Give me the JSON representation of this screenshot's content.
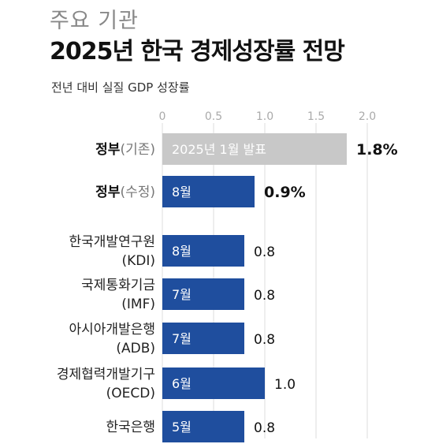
{
  "chart_data": {
    "type": "bar",
    "orientation": "horizontal",
    "kicker": "주요 기관",
    "title": "2025년 한국 경제성장률 전망",
    "subtitle": "전년 대비 실질 GDP 성장률",
    "xlim": [
      0,
      2.0
    ],
    "xticks": [
      "0",
      "0.5",
      "1.0",
      "1.5",
      "2.0"
    ],
    "grid": true,
    "rows": [
      {
        "label_strong": "정부",
        "label_light": "(기존)",
        "label_lines": [],
        "value": 1.8,
        "value_label": "1.8%",
        "bar_text": "2025년 1월 발표",
        "color": "#c8c8c8",
        "highlight": true
      },
      {
        "label_strong": "정부",
        "label_light": "(수정)",
        "label_lines": [],
        "value": 0.9,
        "value_label": "0.9%",
        "bar_text": "8월",
        "color": "#1f4e9e",
        "highlight": true
      },
      {
        "label_strong": "",
        "label_light": "",
        "label_lines": [
          "한국개발연구원",
          "(KDI)"
        ],
        "value": 0.8,
        "value_label": "0.8",
        "bar_text": "8월",
        "color": "#1f4e9e",
        "highlight": false
      },
      {
        "label_strong": "",
        "label_light": "",
        "label_lines": [
          "국제통화기금",
          "(IMF)"
        ],
        "value": 0.8,
        "value_label": "0.8",
        "bar_text": "7월",
        "color": "#1f4e9e",
        "highlight": false
      },
      {
        "label_strong": "",
        "label_light": "",
        "label_lines": [
          "아시아개발은행",
          "(ADB)"
        ],
        "value": 0.8,
        "value_label": "0.8",
        "bar_text": "7월",
        "color": "#1f4e9e",
        "highlight": false
      },
      {
        "label_strong": "",
        "label_light": "",
        "label_lines": [
          "경제협력개발기구",
          "(OECD)"
        ],
        "value": 1.0,
        "value_label": "1.0",
        "bar_text": "6월",
        "color": "#1f4e9e",
        "highlight": false
      },
      {
        "label_strong": "",
        "label_light": "",
        "label_lines": [
          "한국은행"
        ],
        "value": 0.8,
        "value_label": "0.8",
        "bar_text": "5월",
        "color": "#1f4e9e",
        "highlight": false
      }
    ]
  }
}
